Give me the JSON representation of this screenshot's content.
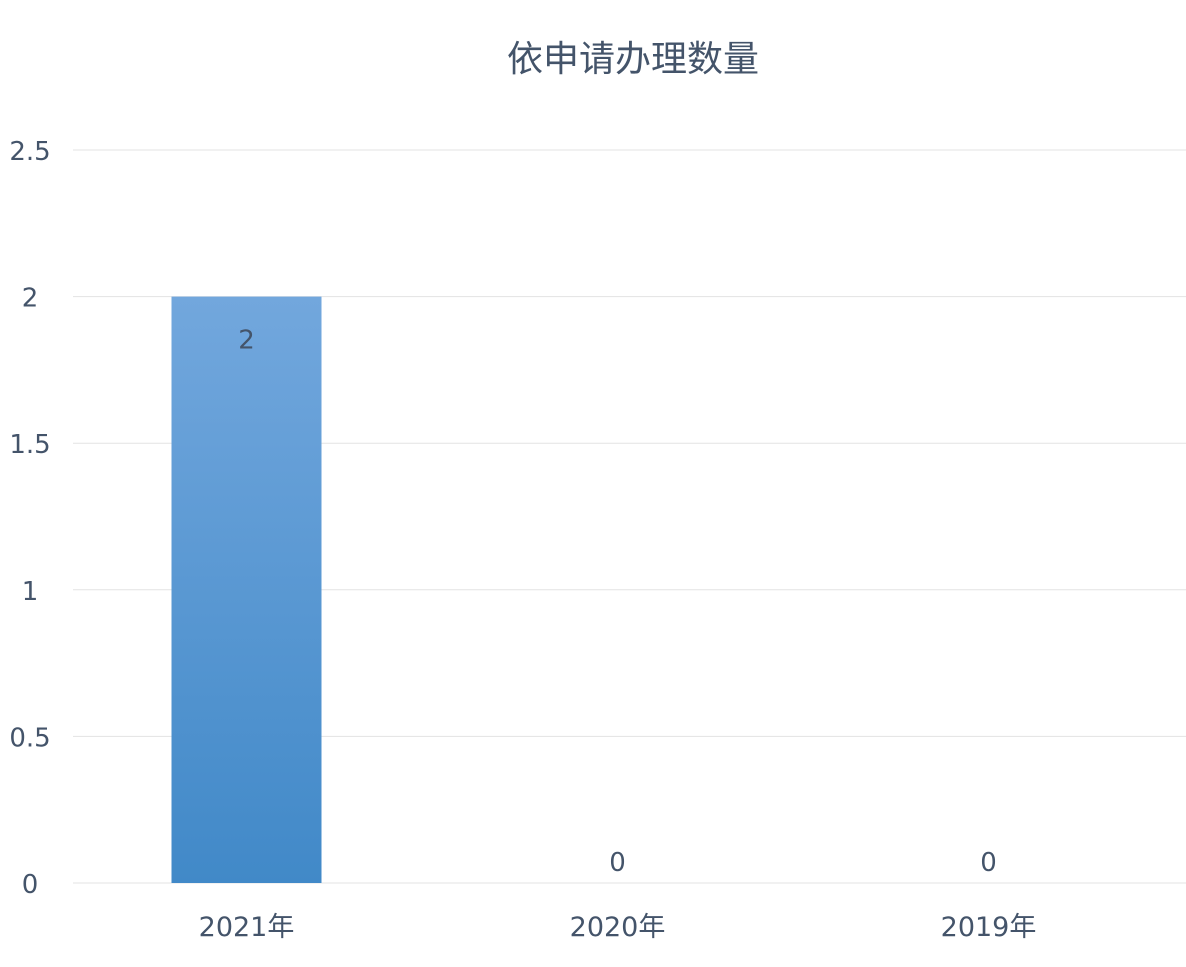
{
  "chart_data": {
    "type": "bar",
    "title": "依申请办理数量",
    "categories": [
      "2021年",
      "2020年",
      "2019年"
    ],
    "values": [
      2,
      0,
      0
    ],
    "data_labels": [
      "2",
      "0",
      "0"
    ],
    "xlabel": "",
    "ylabel": "",
    "ylim": [
      0,
      2.5
    ],
    "yticks": [
      "0",
      "0.5",
      "1",
      "1.5",
      "2",
      "2.5"
    ],
    "grid": true,
    "legend": "none",
    "colors": {
      "bar_top": "#72a7dd",
      "bar_bottom": "#4189c8",
      "text": "#44546a",
      "grid": "#e3e3e3"
    }
  }
}
